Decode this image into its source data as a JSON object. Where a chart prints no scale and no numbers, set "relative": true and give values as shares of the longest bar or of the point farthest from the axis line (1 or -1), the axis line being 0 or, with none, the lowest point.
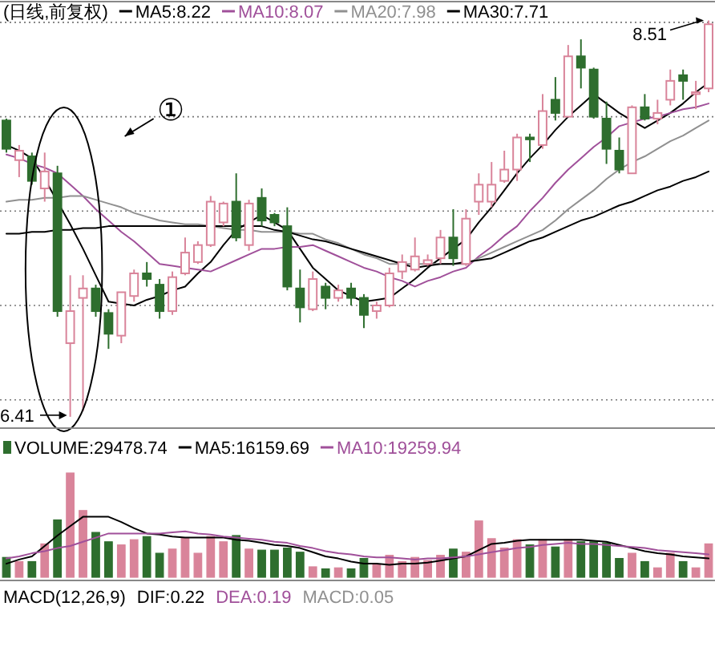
{
  "chart_data": [
    {
      "type": "candlestick",
      "title": "(日线,前复权)",
      "legend": "top left",
      "grid": "y",
      "ylim": [
        6.35,
        8.61
      ],
      "yticks": [
        {
          "value": 6.5,
          "label": null
        },
        {
          "value": 7.0,
          "label": null
        },
        {
          "value": 7.5,
          "label": null
        },
        {
          "value": 8.0,
          "label": null
        },
        {
          "value": 8.5,
          "label": null
        }
      ],
      "categories": [
        null,
        null,
        null,
        null,
        null,
        null,
        null,
        null,
        null,
        null,
        null,
        null,
        null,
        null,
        null,
        null,
        null,
        null,
        null,
        null,
        null,
        null,
        null,
        null,
        null,
        null,
        null,
        null,
        null,
        null,
        null,
        null,
        null,
        null,
        null,
        null,
        null,
        null,
        null,
        null,
        null,
        null,
        null,
        null,
        null,
        null,
        null,
        null,
        null,
        null,
        null,
        null,
        null,
        null,
        null,
        null
      ],
      "ohlc": [
        [
          7.98,
          7.99,
          7.81,
          7.83
        ],
        [
          7.77,
          7.85,
          7.68,
          7.82
        ],
        [
          7.79,
          7.81,
          7.64,
          7.66
        ],
        [
          7.62,
          7.81,
          7.55,
          7.71
        ],
        [
          7.7,
          7.74,
          6.94,
          6.97
        ],
        [
          6.8,
          7.16,
          6.41,
          6.97
        ],
        [
          7.04,
          7.16,
          6.44,
          7.09
        ],
        [
          7.09,
          7.11,
          6.94,
          6.97
        ],
        [
          6.96,
          6.98,
          6.77,
          6.85
        ],
        [
          6.84,
          7.07,
          6.8,
          7.07
        ],
        [
          7.05,
          7.19,
          7.02,
          7.17
        ],
        [
          7.17,
          7.23,
          7.1,
          7.14
        ],
        [
          7.11,
          7.14,
          6.93,
          6.97
        ],
        [
          6.97,
          7.18,
          6.95,
          7.15
        ],
        [
          7.17,
          7.36,
          7.16,
          7.28
        ],
        [
          7.23,
          7.34,
          7.22,
          7.32
        ],
        [
          7.32,
          7.58,
          7.31,
          7.55
        ],
        [
          7.44,
          7.55,
          7.42,
          7.54
        ],
        [
          7.55,
          7.7,
          7.34,
          7.36
        ],
        [
          7.32,
          7.56,
          7.29,
          7.54
        ],
        [
          7.57,
          7.62,
          7.42,
          7.45
        ],
        [
          7.48,
          7.49,
          7.42,
          7.44
        ],
        [
          7.42,
          7.52,
          7.08,
          7.1
        ],
        [
          7.09,
          7.19,
          6.91,
          6.99
        ],
        [
          6.98,
          7.18,
          6.97,
          7.14
        ],
        [
          7.1,
          7.12,
          6.98,
          7.04
        ],
        [
          7.04,
          7.11,
          7.02,
          7.08
        ],
        [
          7.09,
          7.12,
          7.0,
          7.04
        ],
        [
          7.04,
          7.06,
          6.88,
          6.95
        ],
        [
          6.97,
          7.02,
          6.93,
          7.0
        ],
        [
          7.0,
          7.2,
          6.99,
          7.17
        ],
        [
          7.18,
          7.27,
          7.14,
          7.23
        ],
        [
          7.19,
          7.36,
          7.18,
          7.26
        ],
        [
          7.22,
          7.27,
          7.21,
          7.24
        ],
        [
          7.25,
          7.4,
          7.22,
          7.36
        ],
        [
          7.36,
          7.51,
          7.21,
          7.25
        ],
        [
          7.22,
          7.51,
          7.21,
          7.46
        ],
        [
          7.55,
          7.7,
          7.48,
          7.64
        ],
        [
          7.55,
          7.76,
          7.52,
          7.64
        ],
        [
          7.66,
          7.82,
          7.65,
          7.72
        ],
        [
          7.72,
          7.91,
          7.66,
          7.89
        ],
        [
          7.89,
          7.91,
          7.76,
          7.88
        ],
        [
          7.85,
          8.12,
          7.83,
          8.03
        ],
        [
          8.09,
          8.21,
          7.98,
          8.02
        ],
        [
          8.0,
          8.38,
          8.0,
          8.32
        ],
        [
          8.32,
          8.41,
          8.15,
          8.26
        ],
        [
          8.25,
          8.26,
          7.99,
          8.0
        ],
        [
          7.99,
          8.08,
          7.75,
          7.83
        ],
        [
          7.82,
          7.89,
          7.7,
          7.72
        ],
        [
          7.7,
          8.06,
          7.7,
          8.05
        ],
        [
          8.05,
          8.12,
          7.98,
          7.99
        ],
        [
          7.99,
          8.09,
          7.96,
          8.02
        ],
        [
          8.09,
          8.25,
          8.06,
          8.19
        ],
        [
          8.22,
          8.25,
          8.09,
          8.19
        ],
        [
          8.12,
          8.19,
          8.04,
          8.13
        ],
        [
          8.15,
          8.51,
          8.13,
          8.49
        ]
      ],
      "colors": [
        "#2e6e2e",
        "#d9849a",
        "#2e6e2e",
        "#d9849a",
        "#2e6e2e",
        "#d9849a",
        "#d9849a",
        "#2e6e2e",
        "#2e6e2e",
        "#d9849a",
        "#d9849a",
        "#2e6e2e",
        "#2e6e2e",
        "#d9849a",
        "#d9849a",
        "#d9849a",
        "#d9849a",
        "#d9849a",
        "#2e6e2e",
        "#d9849a",
        "#2e6e2e",
        "#2e6e2e",
        "#2e6e2e",
        "#2e6e2e",
        "#d9849a",
        "#2e6e2e",
        "#d9849a",
        "#2e6e2e",
        "#2e6e2e",
        "#d9849a",
        "#d9849a",
        "#d9849a",
        "#d9849a",
        "#d9849a",
        "#d9849a",
        "#2e6e2e",
        "#d9849a",
        "#d9849a",
        "#d9849a",
        "#d9849a",
        "#d9849a",
        "#2e6e2e",
        "#d9849a",
        "#2e6e2e",
        "#d9849a",
        "#2e6e2e",
        "#2e6e2e",
        "#2e6e2e",
        "#2e6e2e",
        "#d9849a",
        "#2e6e2e",
        "#d9849a",
        "#d9849a",
        "#2e6e2e",
        "#d9849a",
        "#d9849a"
      ],
      "series": [
        {
          "name": "MA5:8.22",
          "type": "line",
          "color": "#000000",
          "values": [
            7.85,
            7.82,
            7.78,
            7.67,
            7.55,
            7.43,
            7.3,
            7.16,
            7.02,
            7.01,
            7.0,
            7.03,
            7.05,
            7.08,
            7.1,
            7.17,
            7.23,
            7.32,
            7.4,
            7.44,
            7.48,
            7.44,
            7.4,
            7.3,
            7.2,
            7.14,
            7.08,
            7.05,
            7.02,
            7.03,
            7.04,
            7.09,
            7.14,
            7.2,
            7.25,
            7.3,
            7.35,
            7.44,
            7.52,
            7.61,
            7.7,
            7.78,
            7.85,
            7.93,
            8.0,
            8.06,
            8.12,
            8.07,
            8.02,
            7.98,
            7.94,
            7.98,
            8.02,
            8.07,
            8.13,
            8.18
          ]
        },
        {
          "name": "MA10:8.07",
          "type": "line",
          "color": "#a0509a",
          "values": [
            7.8,
            7.78,
            7.75,
            7.73,
            7.7,
            7.64,
            7.58,
            7.51,
            7.45,
            7.39,
            7.34,
            7.28,
            7.22,
            7.21,
            7.2,
            7.19,
            7.18,
            7.21,
            7.24,
            7.27,
            7.3,
            7.3,
            7.31,
            7.31,
            7.32,
            7.29,
            7.26,
            7.23,
            7.2,
            7.18,
            7.15,
            7.13,
            7.1,
            7.13,
            7.15,
            7.18,
            7.2,
            7.26,
            7.31,
            7.37,
            7.42,
            7.5,
            7.57,
            7.65,
            7.72,
            7.78,
            7.84,
            7.89,
            7.95,
            7.97,
            7.99,
            8.0,
            8.02,
            8.04,
            8.05,
            8.07
          ]
        },
        {
          "name": "MA20:7.98",
          "type": "line",
          "color": "#909090",
          "values": [
            7.55,
            7.56,
            7.56,
            7.57,
            7.57,
            7.58,
            7.58,
            7.56,
            7.54,
            7.52,
            7.49,
            7.47,
            7.45,
            7.44,
            7.43,
            7.43,
            7.42,
            7.41,
            7.4,
            7.4,
            7.39,
            7.39,
            7.39,
            7.38,
            7.38,
            7.35,
            7.33,
            7.3,
            7.27,
            7.25,
            7.22,
            7.22,
            7.22,
            7.22,
            7.22,
            7.22,
            7.22,
            7.25,
            7.28,
            7.31,
            7.34,
            7.37,
            7.4,
            7.45,
            7.51,
            7.56,
            7.61,
            7.67,
            7.72,
            7.76,
            7.79,
            7.83,
            7.87,
            7.9,
            7.94,
            7.98
          ]
        },
        {
          "name": "MA30:7.71",
          "type": "line",
          "color": "#000000",
          "values": [
            7.38,
            7.38,
            7.39,
            7.39,
            7.4,
            7.4,
            7.41,
            7.41,
            7.42,
            7.42,
            7.42,
            7.42,
            7.42,
            7.42,
            7.42,
            7.42,
            7.42,
            7.42,
            7.42,
            7.42,
            7.42,
            7.4,
            7.39,
            7.37,
            7.35,
            7.34,
            7.32,
            7.3,
            7.28,
            7.26,
            7.24,
            7.22,
            7.2,
            7.21,
            7.22,
            7.22,
            7.23,
            7.24,
            7.25,
            7.28,
            7.31,
            7.34,
            7.36,
            7.39,
            7.42,
            7.45,
            7.47,
            7.5,
            7.53,
            7.55,
            7.58,
            7.61,
            7.63,
            7.66,
            7.68,
            7.71
          ]
        }
      ],
      "annotations": [
        "①",
        "8.51",
        "6.41"
      ]
    },
    {
      "type": "bar",
      "relative": true,
      "legend": "top left",
      "categories": [
        null,
        null,
        null,
        null,
        null,
        null,
        null,
        null,
        null,
        null,
        null,
        null,
        null,
        null,
        null,
        null,
        null,
        null,
        null,
        null,
        null,
        null,
        null,
        null,
        null,
        null,
        null,
        null,
        null,
        null,
        null,
        null,
        null,
        null,
        null,
        null,
        null,
        null,
        null,
        null,
        null,
        null,
        null,
        null,
        null,
        null,
        null,
        null,
        null,
        null,
        null,
        null,
        null,
        null,
        null,
        null
      ],
      "series": [
        {
          "name": "VOLUME:29478.74",
          "values": [
            0.19,
            0.15,
            0.15,
            0.32,
            0.55,
            1,
            0.64,
            0.43,
            0.34,
            0.31,
            0.36,
            0.39,
            0.23,
            0.27,
            0.38,
            0.23,
            0.39,
            0.34,
            0.4,
            0.27,
            0.26,
            0.26,
            0.28,
            0.24,
            0.1,
            0.08,
            0.09,
            0.08,
            0.18,
            0.12,
            0.21,
            0.15,
            0.19,
            0.16,
            0.21,
            0.27,
            0.24,
            0.54,
            0.37,
            0.28,
            0.36,
            0.31,
            0.36,
            0.29,
            0.36,
            0.34,
            0.34,
            0.33,
            0.18,
            0.23,
            0.15,
            0.09,
            0.23,
            0.15,
            0.09,
            0.32
          ],
          "colors": [
            "#2e6e2e",
            "#d9849a",
            "#2e6e2e",
            "#d9849a",
            "#2e6e2e",
            "#d9849a",
            "#d9849a",
            "#2e6e2e",
            "#2e6e2e",
            "#d9849a",
            "#d9849a",
            "#2e6e2e",
            "#2e6e2e",
            "#d9849a",
            "#d9849a",
            "#d9849a",
            "#d9849a",
            "#d9849a",
            "#2e6e2e",
            "#d9849a",
            "#2e6e2e",
            "#2e6e2e",
            "#2e6e2e",
            "#2e6e2e",
            "#d9849a",
            "#2e6e2e",
            "#d9849a",
            "#2e6e2e",
            "#2e6e2e",
            "#d9849a",
            "#d9849a",
            "#d9849a",
            "#d9849a",
            "#d9849a",
            "#d9849a",
            "#2e6e2e",
            "#d9849a",
            "#d9849a",
            "#d9849a",
            "#d9849a",
            "#d9849a",
            "#2e6e2e",
            "#d9849a",
            "#2e6e2e",
            "#d9849a",
            "#2e6e2e",
            "#2e6e2e",
            "#2e6e2e",
            "#2e6e2e",
            "#d9849a",
            "#2e6e2e",
            "#d9849a",
            "#d9849a",
            "#2e6e2e",
            "#d9849a",
            "#d9849a"
          ]
        },
        {
          "name": "MA5:16159.69",
          "type": "line",
          "color": "#000000",
          "values": [
            0.13,
            0.17,
            0.2,
            0.3,
            0.4,
            0.49,
            0.58,
            0.58,
            0.58,
            0.53,
            0.47,
            0.42,
            0.41,
            0.39,
            0.38,
            0.38,
            0.38,
            0.38,
            0.36,
            0.35,
            0.33,
            0.31,
            0.3,
            0.28,
            0.24,
            0.2,
            0.18,
            0.15,
            0.13,
            0.13,
            0.12,
            0.13,
            0.13,
            0.14,
            0.16,
            0.18,
            0.2,
            0.26,
            0.32,
            0.33,
            0.35,
            0.36,
            0.36,
            0.36,
            0.36,
            0.36,
            0.35,
            0.34,
            0.31,
            0.28,
            0.25,
            0.23,
            0.22,
            0.2,
            0.19,
            0.18
          ]
        },
        {
          "name": "MA10:19259.94",
          "type": "line",
          "color": "#a0509a",
          "values": [
            0.18,
            0.2,
            0.23,
            0.25,
            0.28,
            0.3,
            0.34,
            0.38,
            0.42,
            0.42,
            0.42,
            0.42,
            0.42,
            0.43,
            0.44,
            0.42,
            0.41,
            0.39,
            0.38,
            0.37,
            0.36,
            0.34,
            0.33,
            0.3,
            0.28,
            0.25,
            0.23,
            0.22,
            0.2,
            0.19,
            0.19,
            0.18,
            0.17,
            0.18,
            0.18,
            0.19,
            0.2,
            0.22,
            0.24,
            0.26,
            0.28,
            0.29,
            0.31,
            0.32,
            0.33,
            0.32,
            0.32,
            0.31,
            0.3,
            0.29,
            0.28,
            0.26,
            0.25,
            0.24,
            0.23,
            0.22
          ]
        }
      ]
    },
    {
      "type": "other",
      "title": "MACD(12,26,9)",
      "annotations": [
        "DIF:0.22",
        "DEA:0.19",
        "MACD:0.05"
      ]
    }
  ]
}
